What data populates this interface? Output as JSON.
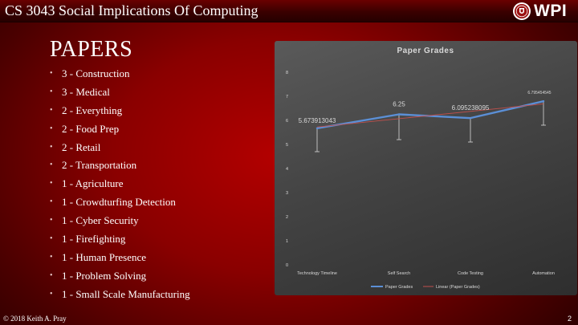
{
  "header": {
    "course_title": "CS 3043 Social Implications Of Computing",
    "logo_text": "WPI"
  },
  "slide": {
    "heading": "PAPERS",
    "items": [
      "3 - Construction",
      "3 - Medical",
      "2 - Everything",
      "2 - Food Prep",
      "2 - Retail",
      "2 - Transportation",
      "1 - Agriculture",
      "1 - Crowdturfing Detection",
      "1 - Cyber Security",
      "1 - Firefighting",
      "1 - Human Presence",
      "1 - Problem Solving",
      "1 - Small Scale Manufacturing"
    ]
  },
  "footer": {
    "copyright": "© 2018 Keith A. Pray",
    "page_number": "2"
  },
  "colors": {
    "series_line": "#5b8fd6",
    "trend_line": "#c0504d",
    "error_bar": "#d9d9d9",
    "chart_text": "#d9d9d9"
  },
  "chart_data": {
    "type": "line",
    "title": "Paper Grades",
    "categories": [
      "Technology Timeline",
      "Self Search",
      "Code Testing",
      "Automation"
    ],
    "series": [
      {
        "name": "Paper Grades",
        "values": [
          5.673913043,
          6.25,
          6.095238095,
          6.795454545
        ],
        "data_labels": [
          "5.673913043",
          "6.25",
          "6.095238095",
          "6.795454545"
        ],
        "error_low": [
          4.7,
          5.2,
          5.1,
          5.8
        ]
      }
    ],
    "trendline": {
      "name": "Linear (Paper Grades)",
      "type": "linear"
    },
    "ylim": [
      0,
      8
    ],
    "yticks": [
      "0",
      "1",
      "2",
      "3",
      "4",
      "5",
      "6",
      "7",
      "8"
    ],
    "legend": "bottom",
    "grid": false
  }
}
